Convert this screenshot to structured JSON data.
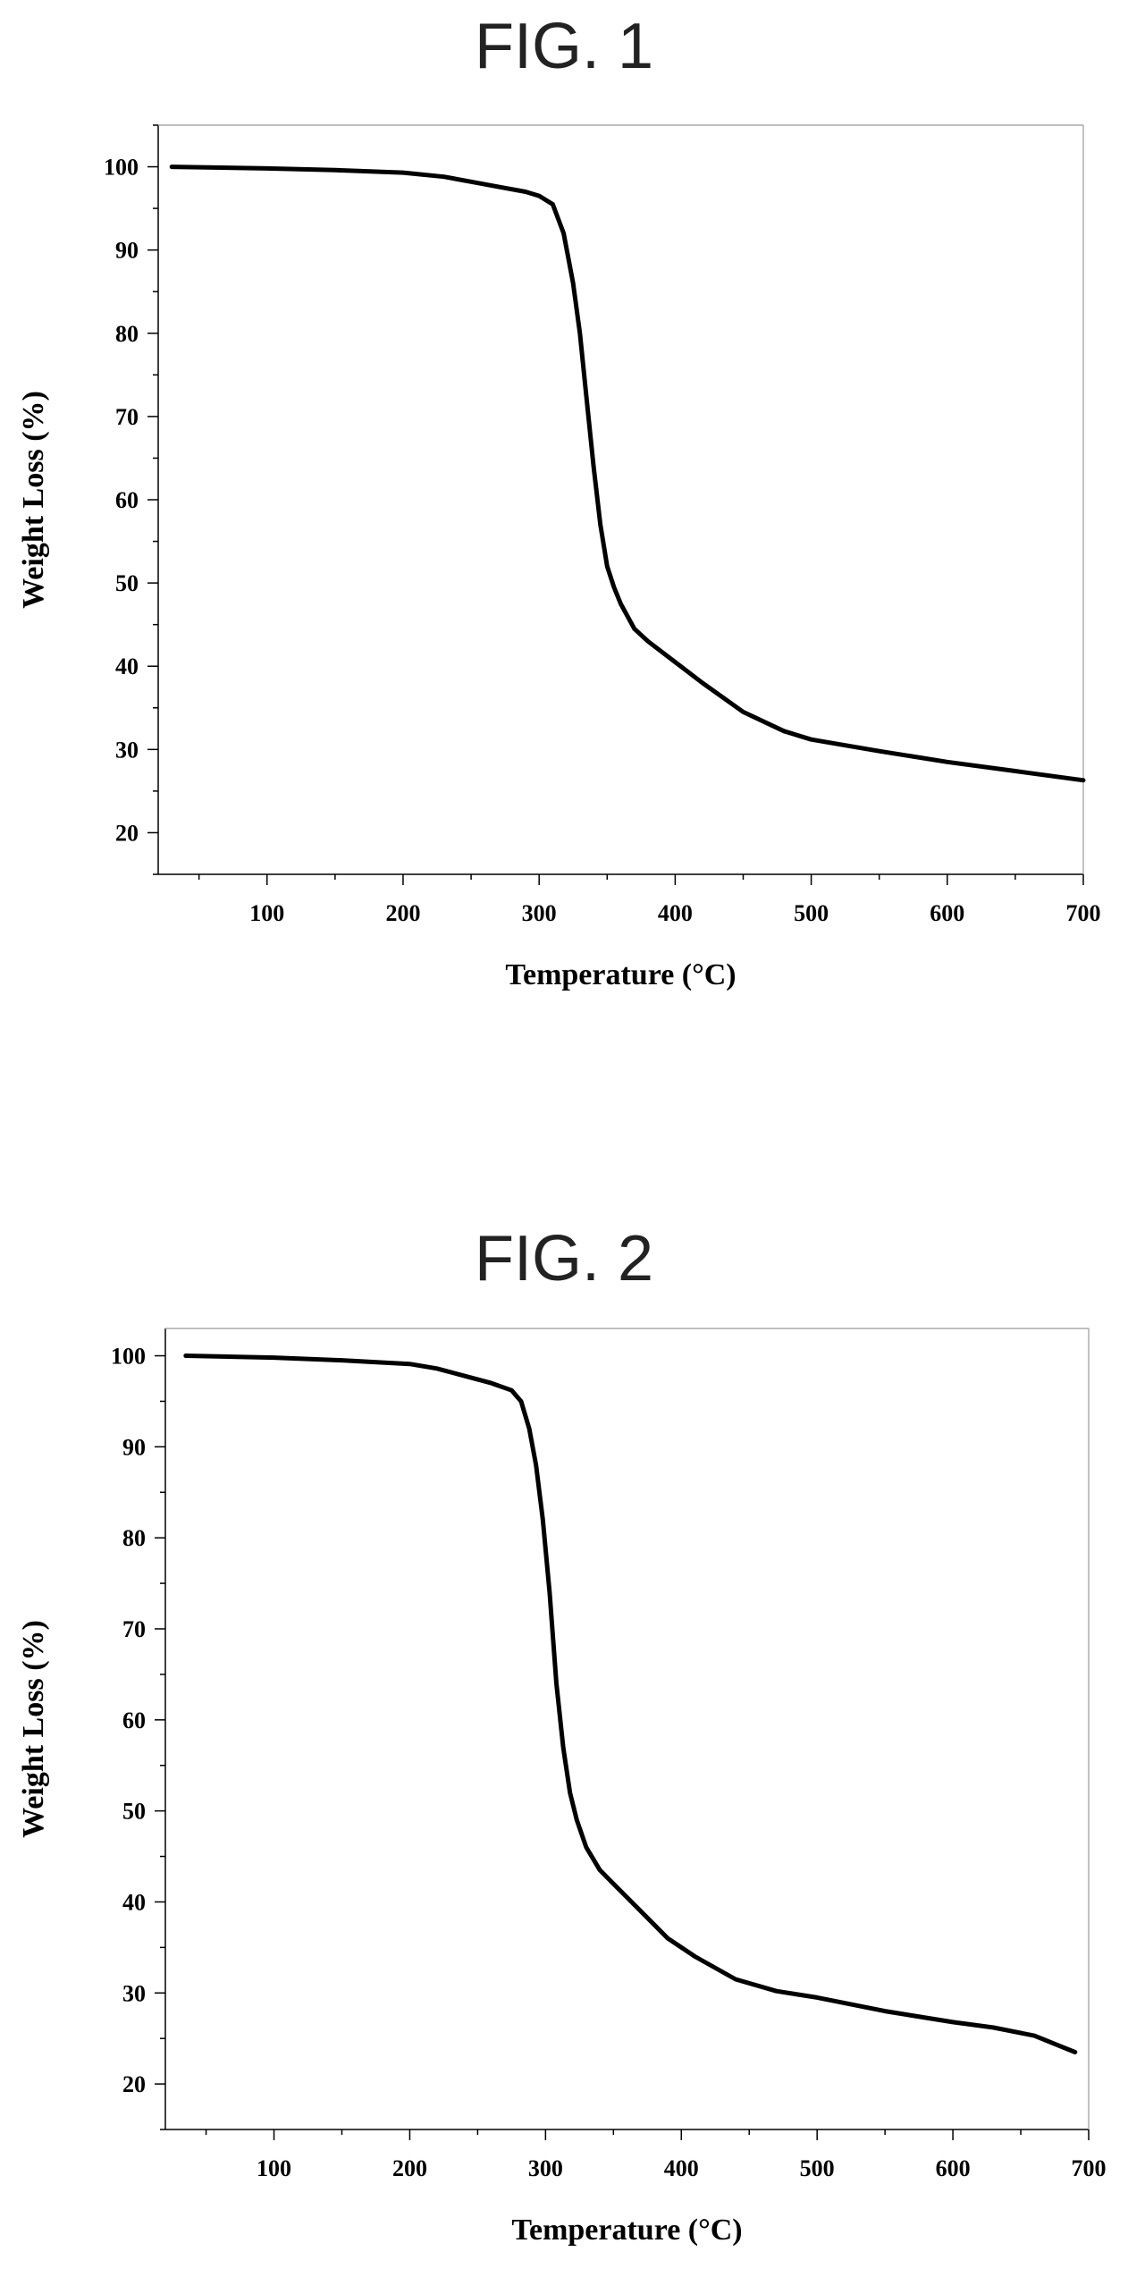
{
  "figures": [
    {
      "title": "FIG. 1"
    },
    {
      "title": "FIG. 2"
    }
  ],
  "chart_data": [
    {
      "type": "line",
      "title": "FIG. 1",
      "xlabel": "Temperature (°C)",
      "ylabel": "Weight Loss (%)",
      "xlim": [
        20,
        700
      ],
      "ylim": [
        15,
        105
      ],
      "x_ticks": [
        100,
        200,
        300,
        400,
        500,
        600,
        700
      ],
      "y_ticks": [
        20,
        30,
        40,
        50,
        60,
        70,
        80,
        90,
        100
      ],
      "grid": false,
      "series": [
        {
          "x": [
            30,
            100,
            150,
            200,
            230,
            250,
            270,
            290,
            300,
            310,
            318,
            325,
            330,
            335,
            340,
            345,
            350,
            355,
            360,
            370,
            380,
            400,
            420,
            450,
            480,
            500,
            550,
            600,
            650,
            700
          ],
          "y": [
            100,
            99.8,
            99.6,
            99.3,
            98.8,
            98.2,
            97.6,
            97.0,
            96.5,
            95.5,
            92.0,
            86.0,
            80.0,
            72.0,
            64.0,
            57.0,
            52.0,
            49.5,
            47.5,
            44.5,
            43.0,
            40.5,
            38.0,
            34.5,
            32.2,
            31.2,
            29.8,
            28.5,
            27.4,
            26.3
          ]
        }
      ]
    },
    {
      "type": "line",
      "title": "FIG. 2",
      "xlabel": "Temperature (°C)",
      "ylabel": "Weight Loss (%)",
      "xlim": [
        20,
        700
      ],
      "ylim": [
        15,
        103
      ],
      "x_ticks": [
        100,
        200,
        300,
        400,
        500,
        600,
        700
      ],
      "y_ticks": [
        20,
        30,
        40,
        50,
        60,
        70,
        80,
        90,
        100
      ],
      "grid": false,
      "series": [
        {
          "x": [
            35,
            100,
            150,
            200,
            220,
            240,
            260,
            275,
            282,
            288,
            293,
            298,
            303,
            308,
            313,
            318,
            323,
            330,
            340,
            350,
            370,
            390,
            410,
            440,
            470,
            500,
            550,
            600,
            630,
            660,
            690
          ],
          "y": [
            100,
            99.8,
            99.5,
            99.1,
            98.6,
            97.8,
            97.0,
            96.2,
            95.0,
            92.0,
            88.0,
            82.0,
            74.0,
            64.0,
            57.0,
            52.0,
            49.0,
            46.0,
            43.5,
            42.0,
            39.0,
            36.0,
            34.0,
            31.5,
            30.2,
            29.5,
            28.0,
            26.8,
            26.2,
            25.3,
            23.5
          ]
        }
      ]
    }
  ]
}
